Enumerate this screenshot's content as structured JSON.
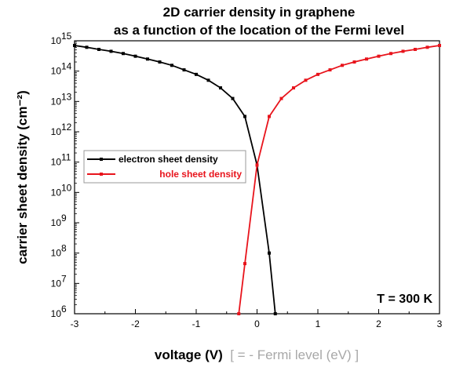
{
  "chart_data": {
    "type": "line",
    "title_lines": [
      "2D carrier density in graphene",
      "as a function of the location of the Fermi level"
    ],
    "xlabel": "voltage (V)",
    "xlabel_suffix": "[ = - Fermi level (eV) ]",
    "ylabel": "carrier sheet density (cm⁻²)",
    "xlim": [
      -3,
      3
    ],
    "ylim_log10": [
      6,
      15
    ],
    "y_scale": "log",
    "grid": false,
    "legend_position": "middle-left",
    "annotation": "T = 300 K",
    "x_ticks": [
      "-3",
      "-2",
      "-1",
      "0",
      "1",
      "2",
      "3"
    ],
    "y_tick_mantissa": "10",
    "y_tick_exponents": [
      "6",
      "7",
      "8",
      "9",
      "10",
      "11",
      "12",
      "13",
      "14",
      "15"
    ],
    "series": [
      {
        "name": "electron sheet density",
        "color": "#000000",
        "points": [
          [
            -3.0,
            700000000000000.0
          ],
          [
            -2.8,
            610000000000000.0
          ],
          [
            -2.6,
            520000000000000.0
          ],
          [
            -2.4,
            450000000000000.0
          ],
          [
            -2.2,
            380000000000000.0
          ],
          [
            -2.0,
            310000000000000.0
          ],
          [
            -1.8,
            250000000000000.0
          ],
          [
            -1.6,
            200000000000000.0
          ],
          [
            -1.4,
            155000000000000.0
          ],
          [
            -1.2,
            110000000000000.0
          ],
          [
            -1.0,
            78000000000000.0
          ],
          [
            -0.8,
            50000000000000.0
          ],
          [
            -0.6,
            28000000000000.0
          ],
          [
            -0.4,
            12500000000000.0
          ],
          [
            -0.2,
            3200000000000.0
          ],
          [
            0.0,
            80000000000.0
          ],
          [
            0.2,
            100000000.0
          ],
          [
            0.3,
            1000000.0
          ]
        ]
      },
      {
        "name": "hole sheet density",
        "color": "#e8141c",
        "points": [
          [
            -0.3,
            1000000.0
          ],
          [
            -0.2,
            45000000.0
          ],
          [
            0.0,
            80000000000.0
          ],
          [
            0.2,
            3200000000000.0
          ],
          [
            0.4,
            12500000000000.0
          ],
          [
            0.6,
            28000000000000.0
          ],
          [
            0.8,
            50000000000000.0
          ],
          [
            1.0,
            78000000000000.0
          ],
          [
            1.2,
            110000000000000.0
          ],
          [
            1.4,
            155000000000000.0
          ],
          [
            1.6,
            200000000000000.0
          ],
          [
            1.8,
            250000000000000.0
          ],
          [
            2.0,
            310000000000000.0
          ],
          [
            2.2,
            380000000000000.0
          ],
          [
            2.4,
            450000000000000.0
          ],
          [
            2.6,
            520000000000000.0
          ],
          [
            2.8,
            610000000000000.0
          ],
          [
            3.0,
            700000000000000.0
          ]
        ]
      }
    ]
  }
}
